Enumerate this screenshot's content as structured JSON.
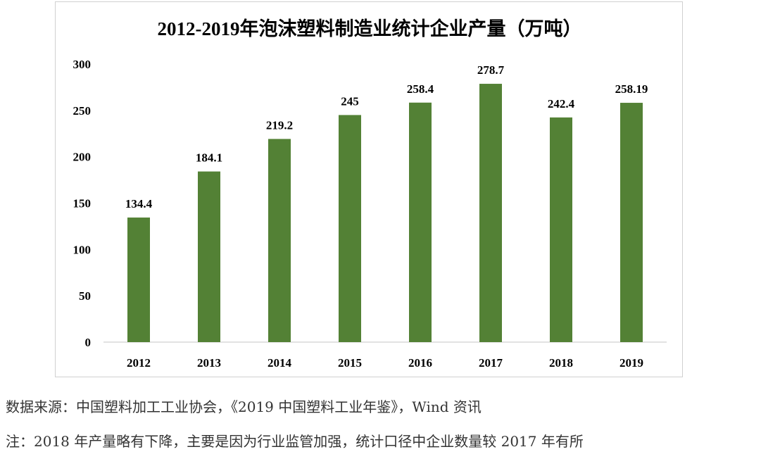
{
  "chart_data": {
    "type": "bar",
    "title": "2012-2019年泡沫塑料制造业统计企业产量（万吨）",
    "categories": [
      "2012",
      "2013",
      "2014",
      "2015",
      "2016",
      "2017",
      "2018",
      "2019"
    ],
    "values": [
      134.4,
      184.1,
      219.2,
      245,
      258.4,
      278.7,
      242.4,
      258.19
    ],
    "data_labels": [
      "134.4",
      "184.1",
      "219.2",
      "245",
      "258.4",
      "278.7",
      "242.4",
      "258.19"
    ],
    "ylim": [
      0,
      300
    ],
    "yticks": [
      "0",
      "50",
      "100",
      "150",
      "200",
      "250",
      "300"
    ],
    "xlabel": "",
    "ylabel": "",
    "bar_color": "#538135",
    "grid": false,
    "legend": "none"
  },
  "notes": {
    "source": "数据来源：中国塑料加工工业协会，《2019 中国塑料工业年鉴》，Wind 资讯",
    "footnote": "注：2018 年产量略有下降，主要是因为行业监管加强，统计口径中企业数量较 2017 年有所"
  }
}
